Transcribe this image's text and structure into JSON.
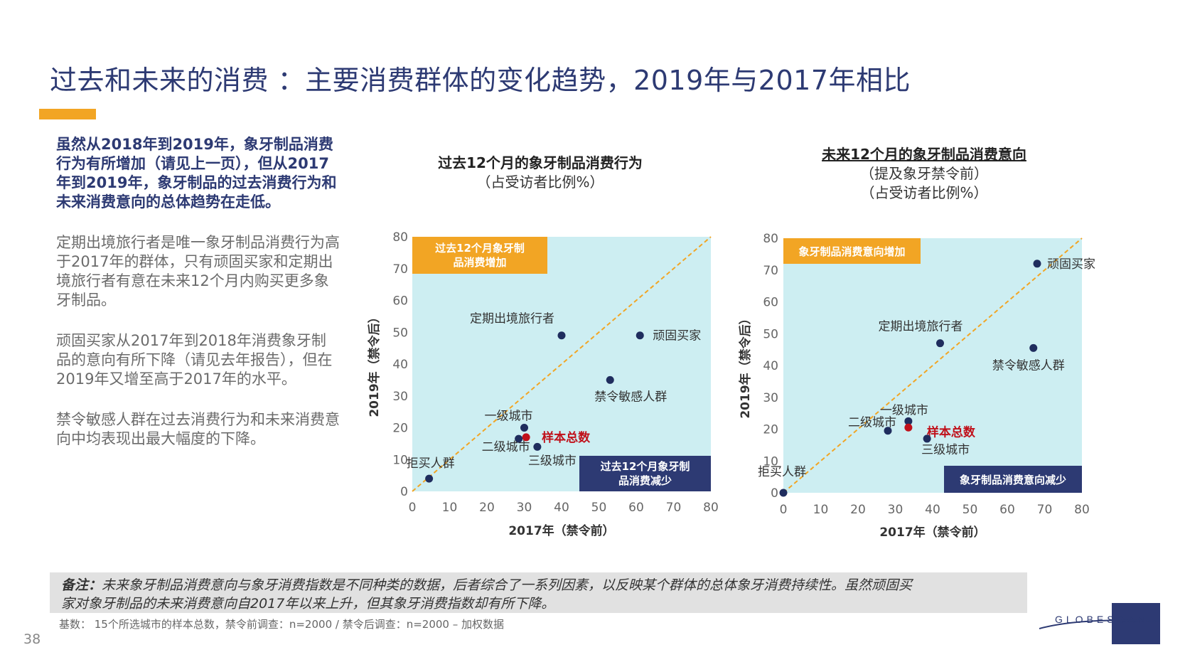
{
  "page": {
    "title": "过去和未来的消费 ：主要消费群体的变化趋势，2019年与2017年相比",
    "page_number": "38",
    "left_column": {
      "lead": "虽然从2018年到2019年，象牙制品消费行为有所增加（请见上一页），但从2017年到2019年，象牙制品的过去消费行为和未来消费意向的总体趋势在走低。",
      "paragraphs": [
        "定期出境旅行者是唯一象牙制品消费行为高于2017年的群体，只有顽固买家和定期出境旅行者有意在未来12个月内购买更多象牙制品。",
        "顽固买家从2017年到2018年消费象牙制品的意向有所下降（请见去年报告），但在2019年又增至高于2017年的水平。",
        "禁令敏感人群在过去消费行为和未来消费意向中均表现出最大幅度的下降。"
      ]
    },
    "note": {
      "label": "备注：",
      "line1": "未来象牙制品消费意向与象牙消费指数是不同种类的数据，后者综合了一系列因素，以反映某个群体的总体象牙消费持续性。虽然顽固买",
      "line2": "家对象牙制品的未来消费意向自2017年以来上升，但其象牙消费指数却有所下降。"
    },
    "base_note": "基数： 15个所选城市的样本总数，禁令前调查：n=2000 / 禁令后调查：n=2000 – 加权数据",
    "logo_text": "GLOBESCAN",
    "colors": {
      "title": "#2d3a73",
      "accent": "#f2a524",
      "plot_bg": "#cdeef2",
      "dot": "#1f2d5e",
      "highlight": "#c0101a",
      "diagonal": "#f2a524",
      "navy_box": "#2d3a73"
    }
  },
  "chart_data": [
    {
      "type": "scatter",
      "title": "过去12个月的象牙制品消费行为",
      "subtitle": "（占受访者比例%）",
      "xlabel": "2017年（禁令前）",
      "ylabel": "2019年（禁令后）",
      "xlim": [
        0,
        80
      ],
      "ylim": [
        0,
        80
      ],
      "xticks": [
        0,
        10,
        20,
        30,
        40,
        50,
        60,
        70,
        80
      ],
      "yticks": [
        0,
        10,
        20,
        30,
        40,
        50,
        60,
        70,
        80
      ],
      "box_top": "过去12个月象牙制品消费增加",
      "box_bottom": "过去12个月象牙制品消费减少",
      "points": [
        {
          "label": "定期出境旅行者",
          "x": 40,
          "y": 49,
          "highlight": false
        },
        {
          "label": "顽固买家",
          "x": 61,
          "y": 49,
          "highlight": false
        },
        {
          "label": "禁令敏感人群",
          "x": 53,
          "y": 35,
          "highlight": false
        },
        {
          "label": "一级城市",
          "x": 30,
          "y": 20,
          "highlight": false
        },
        {
          "label": "样本总数",
          "x": 30.5,
          "y": 17,
          "highlight": true
        },
        {
          "label": "二级城市",
          "x": 28.5,
          "y": 16.5,
          "highlight": false
        },
        {
          "label": "三级城市",
          "x": 33.5,
          "y": 14,
          "highlight": false
        },
        {
          "label": "拒买人群",
          "x": 4.5,
          "y": 4,
          "highlight": false
        }
      ]
    },
    {
      "type": "scatter",
      "title": "未来12个月的象牙制品消费意向",
      "subtitle1": "（提及象牙禁令前）",
      "subtitle2": "（占受访者比例%）",
      "xlabel": "2017年（禁令前）",
      "ylabel": "2019年（禁令后）",
      "xlim": [
        0,
        80
      ],
      "ylim": [
        0,
        80
      ],
      "xticks": [
        0,
        10,
        20,
        30,
        40,
        50,
        60,
        70,
        80
      ],
      "yticks": [
        0,
        10,
        20,
        30,
        40,
        50,
        60,
        70,
        80
      ],
      "box_top": "象牙制品消费意向增加",
      "box_bottom": "象牙制品消费意向减少",
      "points": [
        {
          "label": "顽固买家",
          "x": 68,
          "y": 72,
          "highlight": false
        },
        {
          "label": "定期出境旅行者",
          "x": 42,
          "y": 47,
          "highlight": false
        },
        {
          "label": "禁令敏感人群",
          "x": 67,
          "y": 45.5,
          "highlight": false
        },
        {
          "label": "一级城市",
          "x": 33.5,
          "y": 22.5,
          "highlight": false
        },
        {
          "label": "样本总数",
          "x": 33.5,
          "y": 20.5,
          "highlight": true
        },
        {
          "label": "二级城市",
          "x": 28,
          "y": 19.5,
          "highlight": false
        },
        {
          "label": "三级城市",
          "x": 38.5,
          "y": 17,
          "highlight": false
        },
        {
          "label": "拒买人群",
          "x": 0,
          "y": 0,
          "highlight": false
        }
      ]
    }
  ]
}
